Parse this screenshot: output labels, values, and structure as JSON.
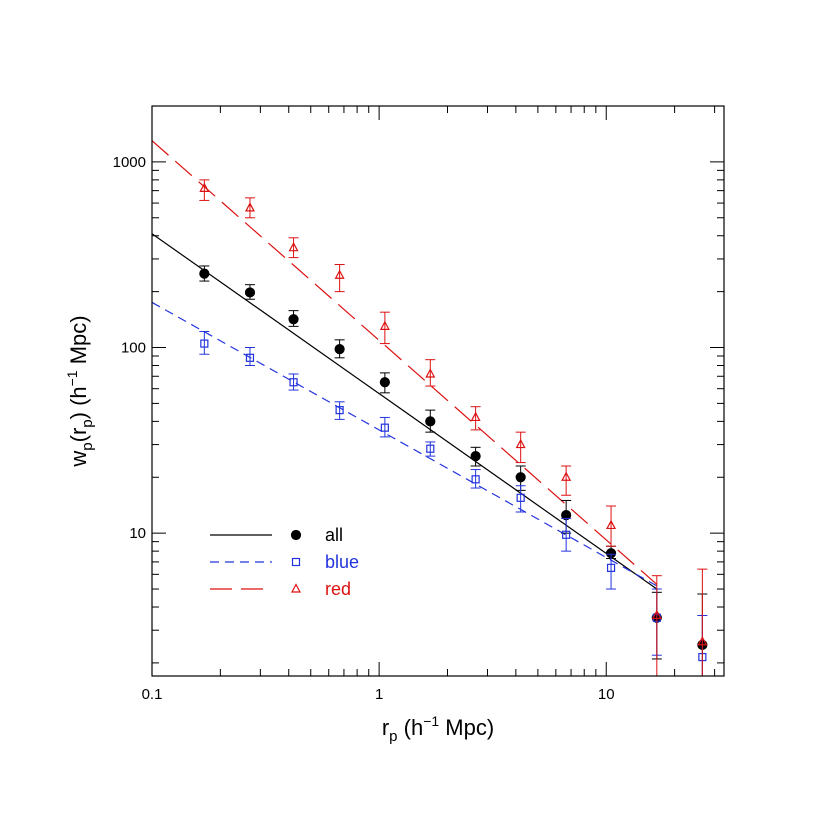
{
  "chart_data": {
    "type": "scatter",
    "title": "",
    "xlabel_main": "r",
    "xlabel_sub": "p",
    "xlabel_rest": " (h",
    "xlabel_exp": "−1",
    "xlabel_end": " Mpc)",
    "ylabel_w": "w",
    "ylabel_wsub": "p",
    "ylabel_mid": "(r",
    "ylabel_rsub": "p",
    "ylabel_rest": ")  (h",
    "ylabel_exp": "−1",
    "ylabel_end": " Mpc)",
    "x_scale": "log",
    "y_scale": "log",
    "xlim": [
      0.1,
      33
    ],
    "ylim": [
      1.7,
      2000
    ],
    "x_tick_labels": [
      "0.1",
      "1",
      "10"
    ],
    "y_tick_labels": [
      "10",
      "100",
      "1000"
    ],
    "x_ticks": [
      0.1,
      1,
      10
    ],
    "y_ticks": [
      10,
      100,
      1000
    ],
    "grid": false,
    "legend_position": "bottom-left",
    "series": [
      {
        "name": "all",
        "marker": "filled-circle",
        "line_style": "solid",
        "color": "#000000",
        "points": [
          {
            "x": 0.17,
            "y": 250,
            "lo": 228,
            "hi": 275
          },
          {
            "x": 0.27,
            "y": 198,
            "lo": 182,
            "hi": 218
          },
          {
            "x": 0.42,
            "y": 142,
            "lo": 130,
            "hi": 158
          },
          {
            "x": 0.67,
            "y": 98,
            "lo": 88,
            "hi": 110
          },
          {
            "x": 1.06,
            "y": 65,
            "lo": 57,
            "hi": 73
          },
          {
            "x": 1.68,
            "y": 40,
            "lo": 35,
            "hi": 46
          },
          {
            "x": 2.66,
            "y": 26,
            "lo": 23,
            "hi": 29
          },
          {
            "x": 4.2,
            "y": 20,
            "lo": 17,
            "hi": 23
          },
          {
            "x": 6.66,
            "y": 12.5,
            "lo": 10,
            "hi": 15
          },
          {
            "x": 10.5,
            "y": 7.8,
            "lo": 7.3,
            "hi": 8.5
          },
          {
            "x": 16.7,
            "y": 3.5,
            "lo": 2.1,
            "hi": 4.8
          },
          {
            "x": 26.5,
            "y": 2.5,
            "lo": 1.7,
            "hi": 4.7
          }
        ],
        "fit": {
          "x": [
            0.1,
            16.7
          ],
          "y": [
            410,
            5
          ]
        }
      },
      {
        "name": "blue",
        "marker": "open-square",
        "line_style": "short-dash",
        "color": "#2233dd",
        "points": [
          {
            "x": 0.17,
            "y": 105,
            "lo": 92,
            "hi": 122
          },
          {
            "x": 0.27,
            "y": 88,
            "lo": 80,
            "hi": 100
          },
          {
            "x": 0.42,
            "y": 65,
            "lo": 59,
            "hi": 72
          },
          {
            "x": 0.67,
            "y": 46,
            "lo": 41,
            "hi": 51
          },
          {
            "x": 1.06,
            "y": 37,
            "lo": 33,
            "hi": 42
          },
          {
            "x": 1.68,
            "y": 28.5,
            "lo": 26,
            "hi": 31
          },
          {
            "x": 2.66,
            "y": 19.5,
            "lo": 17.5,
            "hi": 22
          },
          {
            "x": 4.2,
            "y": 15.5,
            "lo": 13,
            "hi": 18
          },
          {
            "x": 6.66,
            "y": 9.8,
            "lo": 8,
            "hi": 12
          },
          {
            "x": 10.5,
            "y": 6.5,
            "lo": 5,
            "hi": 7.7
          },
          {
            "x": 16.7,
            "y": 3.5,
            "lo": 2.2,
            "hi": 5
          },
          {
            "x": 26.5,
            "y": 2.15,
            "lo": 1.7,
            "hi": 3.6
          }
        ],
        "fit": {
          "x": [
            0.1,
            16.7
          ],
          "y": [
            175,
            5.2
          ]
        }
      },
      {
        "name": "red",
        "marker": "open-triangle",
        "line_style": "long-dash",
        "color": "#dd1111",
        "points": [
          {
            "x": 0.17,
            "y": 720,
            "lo": 620,
            "hi": 800
          },
          {
            "x": 0.27,
            "y": 565,
            "lo": 500,
            "hi": 640
          },
          {
            "x": 0.42,
            "y": 345,
            "lo": 305,
            "hi": 390
          },
          {
            "x": 0.67,
            "y": 245,
            "lo": 200,
            "hi": 280
          },
          {
            "x": 1.06,
            "y": 130,
            "lo": 105,
            "hi": 155
          },
          {
            "x": 1.68,
            "y": 72,
            "lo": 62,
            "hi": 86
          },
          {
            "x": 2.66,
            "y": 42,
            "lo": 36,
            "hi": 48
          },
          {
            "x": 4.2,
            "y": 30,
            "lo": 24,
            "hi": 35
          },
          {
            "x": 6.66,
            "y": 20,
            "lo": 16,
            "hi": 23
          },
          {
            "x": 10.5,
            "y": 11,
            "lo": 8.5,
            "hi": 14
          },
          {
            "x": 16.7,
            "y": 3.6,
            "lo": 1.7,
            "hi": 5.9
          },
          {
            "x": 26.5,
            "y": 2.6,
            "lo": 1.7,
            "hi": 6.4
          }
        ],
        "fit": {
          "x": [
            0.1,
            16.7
          ],
          "y": [
            1300,
            5.3
          ]
        }
      }
    ]
  }
}
